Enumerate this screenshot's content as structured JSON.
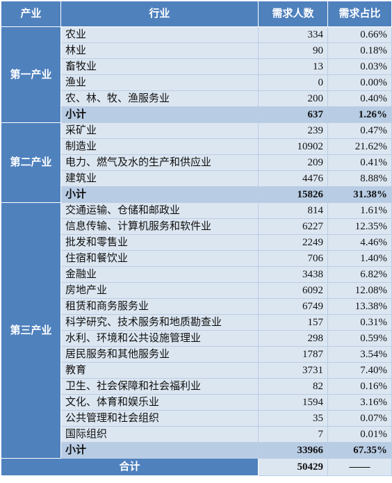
{
  "header": {
    "sector": "产业",
    "industry": "行业",
    "demand": "需求人数",
    "share": "需求占比"
  },
  "sectors": [
    {
      "name": "第一产业",
      "rows": [
        {
          "industry": "农业",
          "demand": "334",
          "share": "0.66%"
        },
        {
          "industry": "林业",
          "demand": "90",
          "share": "0.18%"
        },
        {
          "industry": "畜牧业",
          "demand": "13",
          "share": "0.03%"
        },
        {
          "industry": "渔业",
          "demand": "0",
          "share": "0.00%"
        },
        {
          "industry": "农、林、牧、渔服务业",
          "demand": "200",
          "share": "0.40%"
        }
      ],
      "subtotal": {
        "label": "小计",
        "demand": "637",
        "share": "1.26%"
      }
    },
    {
      "name": "第二产业",
      "rows": [
        {
          "industry": "采矿业",
          "demand": "239",
          "share": "0.47%"
        },
        {
          "industry": "制造业",
          "demand": "10902",
          "share": "21.62%"
        },
        {
          "industry": "电力、燃气及水的生产和供应业",
          "demand": "209",
          "share": "0.41%"
        },
        {
          "industry": "建筑业",
          "demand": "4476",
          "share": "8.88%"
        }
      ],
      "subtotal": {
        "label": "小计",
        "demand": "15826",
        "share": "31.38%"
      }
    },
    {
      "name": "第三产业",
      "rows": [
        {
          "industry": "交通运输、仓储和邮政业",
          "demand": "814",
          "share": "1.61%"
        },
        {
          "industry": "信息传输、计算机服务和软件业",
          "demand": "6227",
          "share": "12.35%"
        },
        {
          "industry": "批发和零售业",
          "demand": "2249",
          "share": "4.46%"
        },
        {
          "industry": "住宿和餐饮业",
          "demand": "706",
          "share": "1.40%"
        },
        {
          "industry": "金融业",
          "demand": "3438",
          "share": "6.82%"
        },
        {
          "industry": "房地产业",
          "demand": "6092",
          "share": "12.08%"
        },
        {
          "industry": "租赁和商务服务业",
          "demand": "6749",
          "share": "13.38%"
        },
        {
          "industry": "科学研究、技术服务和地质勘查业",
          "demand": "157",
          "share": "0.31%"
        },
        {
          "industry": "水利、环境和公共设施管理业",
          "demand": "298",
          "share": "0.59%"
        },
        {
          "industry": "居民服务和其他服务业",
          "demand": "1787",
          "share": "3.54%"
        },
        {
          "industry": "教育",
          "demand": "3731",
          "share": "7.40%"
        },
        {
          "industry": "卫生、社会保障和社会福利业",
          "demand": "82",
          "share": "0.16%"
        },
        {
          "industry": "文化、体育和娱乐业",
          "demand": "1594",
          "share": "3.16%"
        },
        {
          "industry": "公共管理和社会组织",
          "demand": "35",
          "share": "0.07%"
        },
        {
          "industry": "国际组织",
          "demand": "7",
          "share": "0.01%"
        }
      ],
      "subtotal": {
        "label": "小计",
        "demand": "33966",
        "share": "67.35%"
      }
    }
  ],
  "total": {
    "label": "合计",
    "demand": "50429",
    "share": "——"
  },
  "colors": {
    "header_bg": "#4f81bd",
    "row_bg": "#dce6f1",
    "subtotal_bg": "#b8cce4"
  }
}
